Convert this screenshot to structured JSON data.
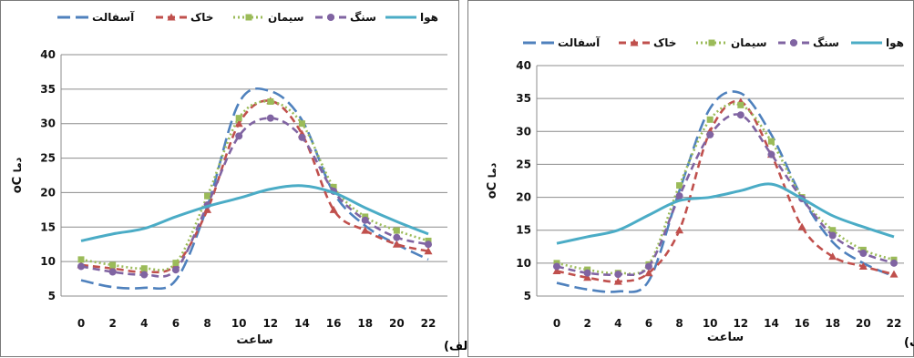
{
  "chart_data": [
    {
      "type": "line",
      "panel_label": "(الف",
      "xlabel": "ساعت",
      "ylabel": "دما oC",
      "ylabel_text": "دما",
      "ylabel_unit": "oC",
      "x": [
        0,
        2,
        4,
        6,
        8,
        10,
        12,
        14,
        16,
        18,
        20,
        22
      ],
      "ylim": [
        5,
        40
      ],
      "yticks": [
        5,
        10,
        15,
        20,
        25,
        30,
        35,
        40
      ],
      "grid": true,
      "legend_position": "top",
      "series": [
        {
          "name": "آسفالت",
          "color": "#4f81bd",
          "style": "long-dash",
          "marker": "none",
          "values": [
            7.3,
            6.3,
            6.2,
            7.3,
            18,
            33,
            34.7,
            30.5,
            20,
            15.2,
            12.5,
            10.3
          ]
        },
        {
          "name": "خاک",
          "color": "#c0504d",
          "style": "dash",
          "marker": "triangle",
          "values": [
            9.5,
            9,
            8.5,
            9.5,
            17.5,
            30,
            33.3,
            28.5,
            17.5,
            14.5,
            12.5,
            11.5
          ]
        },
        {
          "name": "سیمان",
          "color": "#9bbb59",
          "style": "dot",
          "marker": "square",
          "values": [
            10.3,
            9.5,
            9,
            9.8,
            19.5,
            30.8,
            33.2,
            30,
            20.8,
            16.5,
            14.5,
            13
          ]
        },
        {
          "name": "سنگ",
          "color": "#8064a2",
          "style": "dash",
          "marker": "circle",
          "values": [
            9.3,
            8.5,
            8.1,
            8.8,
            18.2,
            28.2,
            30.8,
            28,
            20.2,
            16,
            13.5,
            12.5
          ]
        },
        {
          "name": "هوا",
          "color": "#4bacc6",
          "style": "solid",
          "marker": "none",
          "values": [
            13,
            14,
            14.8,
            16.5,
            18,
            19.2,
            20.5,
            21,
            20,
            17.8,
            15.8,
            14
          ]
        }
      ]
    },
    {
      "type": "line",
      "panel_label": "(ب",
      "xlabel": "ساعت",
      "ylabel": "دما oC",
      "ylabel_text": "دما",
      "ylabel_unit": "oC",
      "x": [
        0,
        2,
        4,
        6,
        8,
        10,
        12,
        14,
        16,
        18,
        20,
        22
      ],
      "ylim": [
        5,
        40
      ],
      "yticks": [
        5,
        10,
        15,
        20,
        25,
        30,
        35,
        40
      ],
      "grid": true,
      "legend_position": "top",
      "series": [
        {
          "name": "آسفالت",
          "color": "#4f81bd",
          "style": "long-dash",
          "marker": "none",
          "values": [
            7,
            6,
            5.7,
            7.3,
            21,
            33.5,
            35.8,
            29.5,
            20,
            13.2,
            10,
            8
          ]
        },
        {
          "name": "خاک",
          "color": "#c0504d",
          "style": "dash",
          "marker": "triangle",
          "values": [
            8.8,
            7.8,
            7.2,
            8.5,
            15,
            30,
            34.5,
            26.5,
            15.5,
            11,
            9.5,
            8.3
          ]
        },
        {
          "name": "سیمان",
          "color": "#9bbb59",
          "style": "dot",
          "marker": "square",
          "values": [
            10,
            9,
            8.5,
            9.8,
            21.8,
            31.8,
            34,
            28.5,
            20,
            15,
            12,
            10.5
          ]
        },
        {
          "name": "سنگ",
          "color": "#8064a2",
          "style": "dash",
          "marker": "circle",
          "values": [
            9.5,
            8.5,
            8.3,
            9.5,
            20.2,
            29.5,
            32.5,
            26.5,
            19.8,
            14.2,
            11.5,
            10
          ]
        },
        {
          "name": "هوا",
          "color": "#4bacc6",
          "style": "solid",
          "marker": "none",
          "values": [
            13,
            14,
            15,
            17.3,
            19.5,
            20,
            21,
            22,
            19.8,
            17.2,
            15.5,
            14
          ]
        }
      ]
    }
  ]
}
